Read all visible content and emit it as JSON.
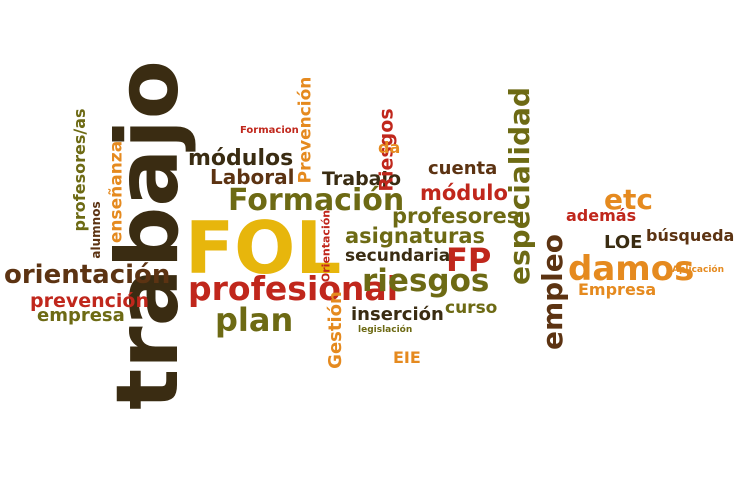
{
  "palette": {
    "red": "#c0271c",
    "orange": "#e58a1f",
    "gold": "#e7b60c",
    "olive": "#6d6a14",
    "brown": "#5c3312",
    "dark": "#3a2c12"
  },
  "words": [
    "trabajo",
    "FOL",
    "Formación",
    "profesional",
    "FP",
    "damos",
    "plan",
    "riesgos",
    "especialidad",
    "empleo",
    "orientación",
    "prevención",
    "empresa",
    "módulos",
    "Laboral",
    "Prevención",
    "Trabajo",
    "Riesgos",
    "profesores",
    "asignaturas",
    "secundaria",
    "inserción",
    "módulo",
    "curso",
    "Gestión",
    "EIE",
    "etc",
    "además",
    "LOE",
    "búsqueda",
    "Empresa",
    "cuenta",
    "enseñanza",
    "profesores/as",
    "alumnos",
    "da",
    "Orientación",
    "Formacion",
    "legislación",
    "Aplicación"
  ]
}
